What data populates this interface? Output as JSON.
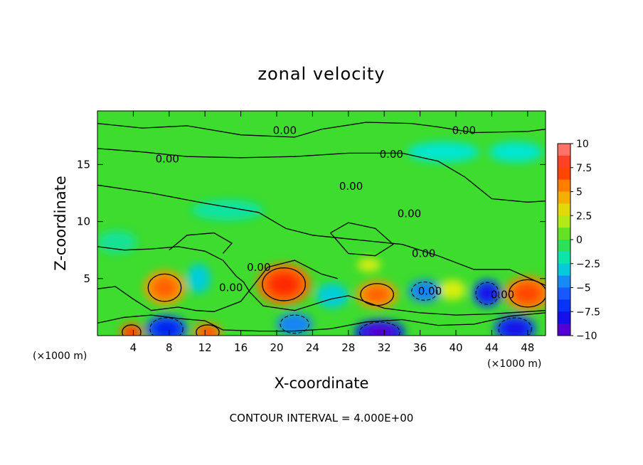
{
  "chart_data": {
    "type": "heatmap",
    "title": "zonal velocity",
    "xlabel": "X-coordinate",
    "ylabel": "Z-coordinate",
    "x_unit_left": "(×1000 m)",
    "x_unit_right": "(×1000 m)",
    "xlim": [
      0,
      50
    ],
    "ylim": [
      0,
      19.7
    ],
    "x_ticks": [
      4,
      8,
      12,
      16,
      20,
      24,
      28,
      32,
      36,
      40,
      44,
      48
    ],
    "y_ticks": [
      5,
      10,
      15
    ],
    "colorbar": {
      "range": [
        -10,
        10
      ],
      "tick_values": [
        10,
        7.5,
        5,
        2.5,
        0,
        -2.5,
        -5,
        -7.5,
        -10
      ],
      "tick_labels": [
        "10",
        "7.5",
        "5",
        "2.5",
        "0",
        "−2.5",
        "−5",
        "−7.5",
        "−10"
      ]
    },
    "contour_labels": [
      {
        "text": "0.00",
        "x": 20.9,
        "y": 18.0
      },
      {
        "text": "0.00",
        "x": 40.9,
        "y": 18.0
      },
      {
        "text": "0.00",
        "x": 7.8,
        "y": 15.5
      },
      {
        "text": "0.00",
        "x": 32.8,
        "y": 15.9
      },
      {
        "text": "0.00",
        "x": 28.3,
        "y": 13.1
      },
      {
        "text": "0.00",
        "x": 34.8,
        "y": 10.7
      },
      {
        "text": "0.00",
        "x": 36.4,
        "y": 7.2
      },
      {
        "text": "0.00",
        "x": 18.0,
        "y": 6.0
      },
      {
        "text": "0.00",
        "x": 14.9,
        "y": 4.2
      },
      {
        "text": "0.00",
        "x": 37.1,
        "y": 3.9
      },
      {
        "text": "0.00",
        "x": 45.2,
        "y": 3.6
      }
    ],
    "features": [
      {
        "value": 5,
        "x": 7.5,
        "y": 4.2,
        "rx": 2.3,
        "ry": 1.5
      },
      {
        "value": 6,
        "x": 20.8,
        "y": 4.5,
        "rx": 3.0,
        "ry": 1.8
      },
      {
        "value": 5,
        "x": 31.2,
        "y": 3.6,
        "rx": 2.3,
        "ry": 1.2
      },
      {
        "value": 5.5,
        "x": 48.0,
        "y": 3.7,
        "rx": 2.6,
        "ry": 1.5
      },
      {
        "value": 6,
        "x": 3.8,
        "y": 0.3,
        "rx": 1.3,
        "ry": 0.8
      },
      {
        "value": 5.5,
        "x": 12.3,
        "y": 0.3,
        "rx": 1.6,
        "ry": 0.8
      },
      {
        "value": -6,
        "x": 7.7,
        "y": 0.6,
        "rx": 2.3,
        "ry": 1.2
      },
      {
        "value": -4.5,
        "x": 22.0,
        "y": 1.0,
        "rx": 2.0,
        "ry": 1.0
      },
      {
        "value": -7.5,
        "x": 31.5,
        "y": 0.3,
        "rx": 2.8,
        "ry": 1.1
      },
      {
        "value": -4.5,
        "x": 36.5,
        "y": 3.9,
        "rx": 1.8,
        "ry": 1.0
      },
      {
        "value": -6.5,
        "x": 43.5,
        "y": 3.7,
        "rx": 1.6,
        "ry": 1.2
      },
      {
        "value": -6.5,
        "x": 46.6,
        "y": 0.6,
        "rx": 2.3,
        "ry": 1.2
      },
      {
        "value": -3,
        "x": 11.3,
        "y": 5.0,
        "rx": 1.3,
        "ry": 1.3
      },
      {
        "value": -3,
        "x": 26.2,
        "y": 3.5,
        "rx": 1.8,
        "ry": 1.1
      },
      {
        "value": -2.5,
        "x": 38.6,
        "y": 16.1,
        "rx": 4.0,
        "ry": 0.9
      },
      {
        "value": -2.5,
        "x": 46.7,
        "y": 16.1,
        "rx": 3.0,
        "ry": 0.9
      },
      {
        "value": -1.8,
        "x": 14.5,
        "y": 11.0,
        "rx": 4.0,
        "ry": 0.9
      },
      {
        "value": -1.6,
        "x": 2.2,
        "y": 8.2,
        "rx": 2.2,
        "ry": 1.0
      },
      {
        "value": 2.5,
        "x": 30.3,
        "y": 6.2,
        "rx": 1.3,
        "ry": 0.6
      },
      {
        "value": 2.5,
        "x": 39.6,
        "y": 4.0,
        "rx": 1.5,
        "ry": 0.9
      }
    ]
  },
  "footer_text": "CONTOUR INTERVAL = 4.000E+00"
}
